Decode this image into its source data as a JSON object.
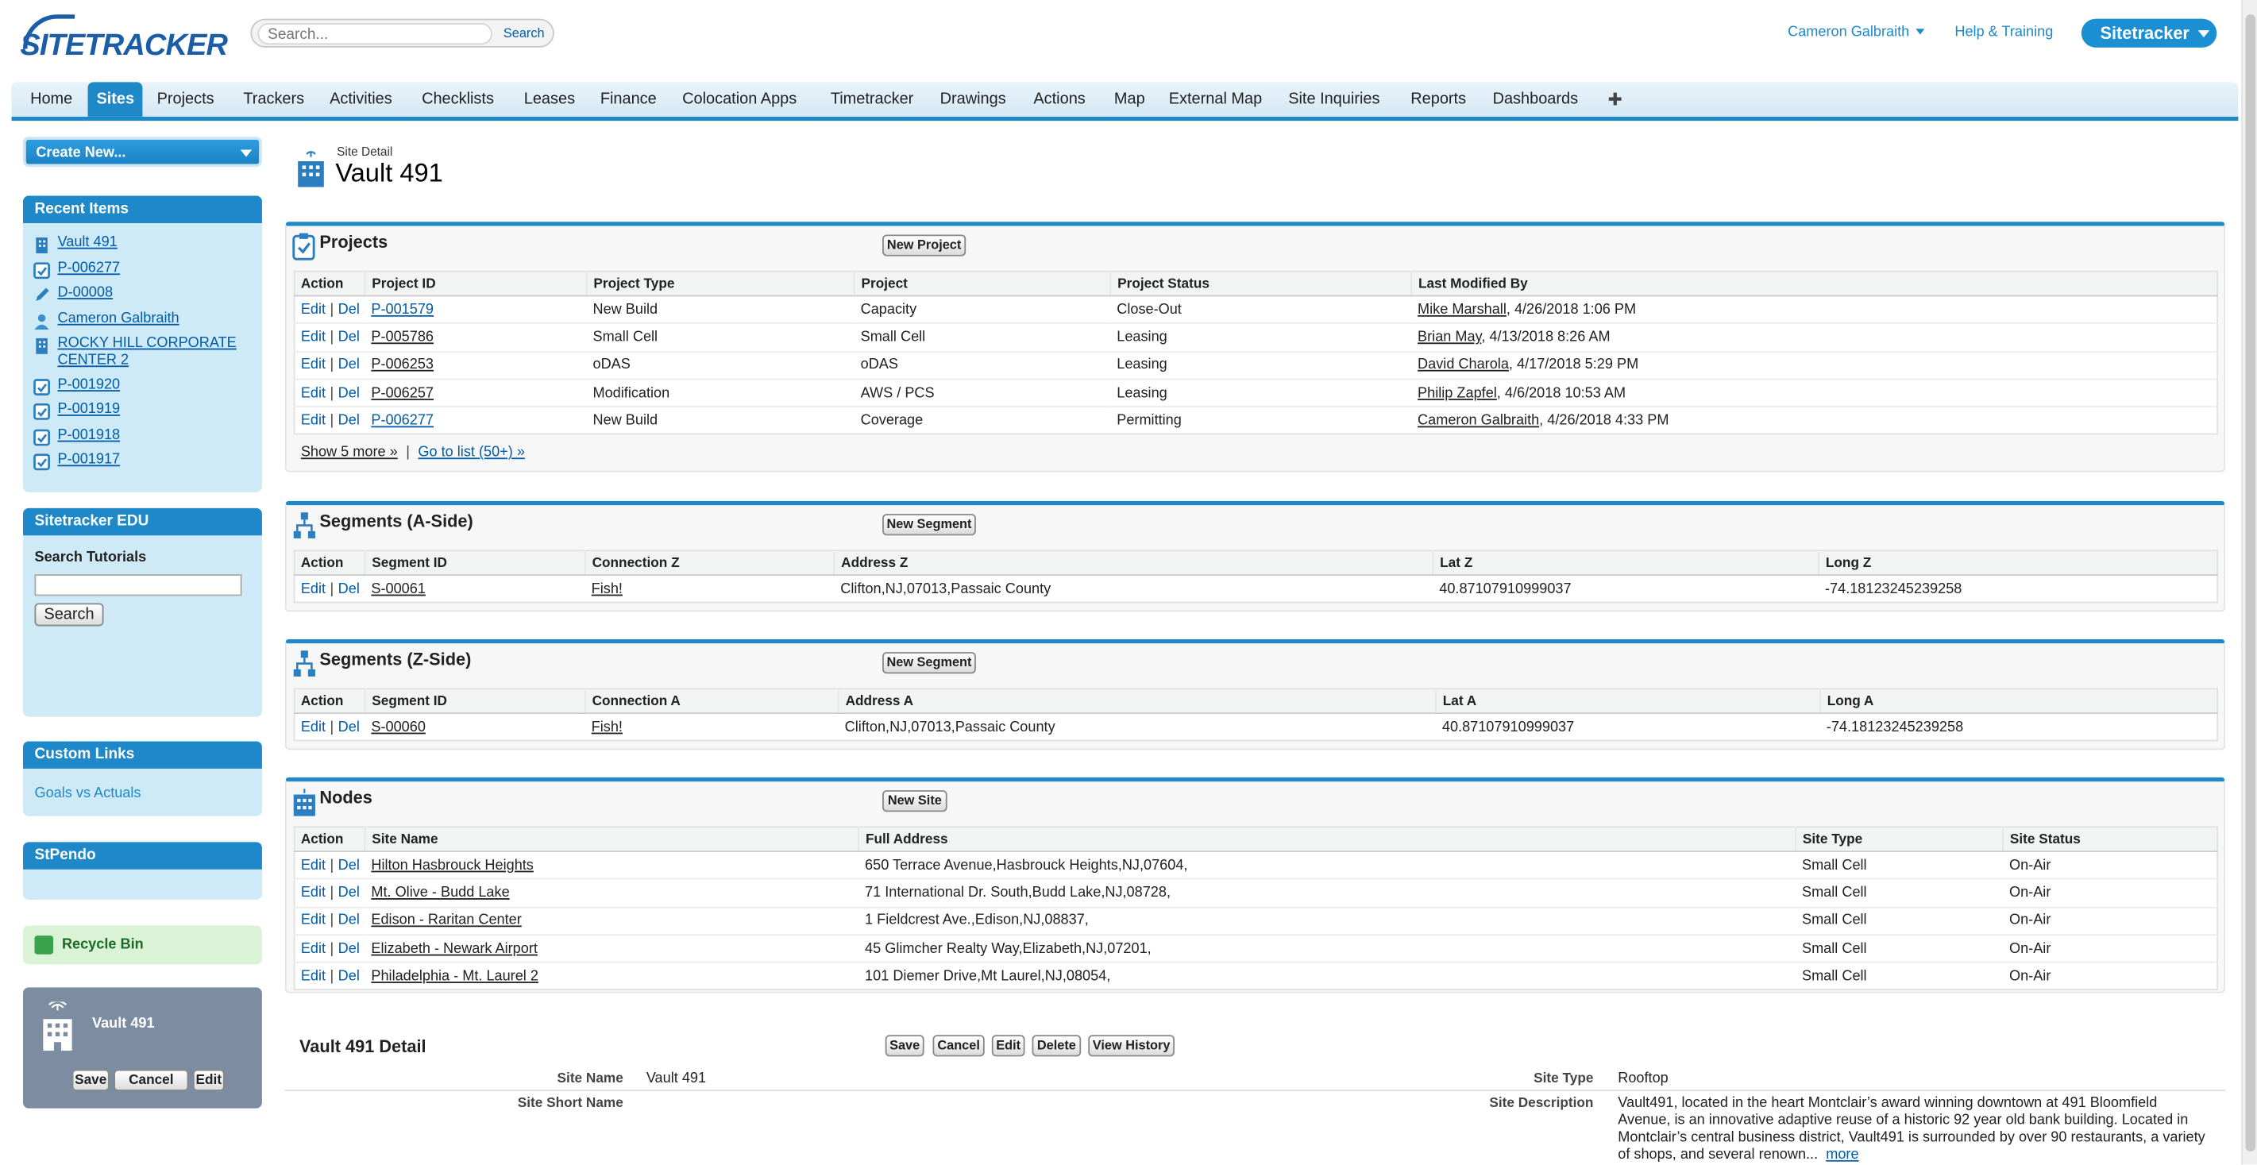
{
  "header": {
    "logo_text": "SITETRACKER",
    "search_placeholder": "Search...",
    "search_button": "Search",
    "user_name": "Cameron Galbraith",
    "help": "Help & Training",
    "app_menu": "Sitetracker"
  },
  "tabs": [
    "Home",
    "Sites",
    "Projects",
    "Trackers",
    "Activities",
    "Checklists",
    "Leases",
    "Finance",
    "Colocation Apps",
    "Timetracker",
    "Drawings",
    "Actions",
    "Map",
    "External Map",
    "Site Inquiries",
    "Reports",
    "Dashboards"
  ],
  "active_tab": "Sites",
  "sidebar": {
    "create_new": "Create New...",
    "recent_items_title": "Recent Items",
    "recent_items": [
      {
        "label": "Vault 491",
        "icon": "building-icon"
      },
      {
        "label": "P-006277",
        "icon": "project-icon"
      },
      {
        "label": "D-00008",
        "icon": "pencil-icon"
      },
      {
        "label": "Cameron Galbraith",
        "icon": "person-icon"
      },
      {
        "label": "ROCKY HILL CORPORATE CENTER 2",
        "icon": "building-icon"
      },
      {
        "label": "P-001920",
        "icon": "project-icon"
      },
      {
        "label": "P-001919",
        "icon": "project-icon"
      },
      {
        "label": "P-001918",
        "icon": "project-icon"
      },
      {
        "label": "P-001917",
        "icon": "project-icon"
      }
    ],
    "edu_title": "Sitetracker EDU",
    "search_tutorials_label": "Search Tutorials",
    "search_tutorials_button": "Search",
    "custom_links_title": "Custom Links",
    "custom_links": [
      "Goals vs Actuals"
    ],
    "stpendo_title": "StPendo",
    "recycle_bin": "Recycle Bin",
    "widget": {
      "title": "Vault 491",
      "save": "Save",
      "cancel": "Cancel",
      "edit": "Edit"
    }
  },
  "page": {
    "type_label": "Site Detail",
    "title": "Vault 491"
  },
  "projects": {
    "title": "Projects",
    "new_button": "New Project",
    "columns": [
      "Action",
      "Project ID",
      "Project Type",
      "Project",
      "Project Status",
      "Last Modified By"
    ],
    "rows": [
      {
        "id": "P-001579",
        "type": "New Build",
        "project": "Capacity",
        "status": "Close-Out",
        "modified_by": "Mike Marshall",
        "modified_at": ", 4/26/2018 1:06 PM"
      },
      {
        "id": "P-005786",
        "type": "Small Cell",
        "project": "Small Cell",
        "status": "Leasing",
        "modified_by": "Brian May",
        "modified_at": ", 4/13/2018 8:26 AM"
      },
      {
        "id": "P-006253",
        "type": "oDAS",
        "project": "oDAS",
        "status": "Leasing",
        "modified_by": "David Charola",
        "modified_at": ", 4/17/2018 5:29 PM"
      },
      {
        "id": "P-006257",
        "type": "Modification",
        "project": "AWS / PCS",
        "status": "Leasing",
        "modified_by": "Philip Zapfel",
        "modified_at": ", 4/6/2018 10:53 AM"
      },
      {
        "id": "P-006277",
        "type": "New Build",
        "project": "Coverage",
        "status": "Permitting",
        "modified_by": "Cameron Galbraith",
        "modified_at": ", 4/26/2018 4:33 PM"
      }
    ],
    "show_more": "Show 5 more »",
    "go_to_list": "Go to list (50+) »"
  },
  "row_actions": {
    "edit": "Edit",
    "sep": "|",
    "del": "Del"
  },
  "segments_a": {
    "title": "Segments (A-Side)",
    "new_button": "New Segment",
    "columns": [
      "Action",
      "Segment ID",
      "Connection Z",
      "Address Z",
      "Lat Z",
      "Long Z"
    ],
    "rows": [
      {
        "id": "S-00061",
        "connection": "Fish!",
        "address": "Clifton,NJ,07013,Passaic County",
        "lat": "40.87107910999037",
        "long": "-74.18123245239258"
      }
    ]
  },
  "segments_z": {
    "title": "Segments (Z-Side)",
    "new_button": "New Segment",
    "columns": [
      "Action",
      "Segment ID",
      "Connection A",
      "Address A",
      "Lat A",
      "Long A"
    ],
    "rows": [
      {
        "id": "S-00060",
        "connection": "Fish!",
        "address": "Clifton,NJ,07013,Passaic County",
        "lat": "40.87107910999037",
        "long": "-74.18123245239258"
      }
    ]
  },
  "nodes": {
    "title": "Nodes",
    "new_button": "New Site",
    "columns": [
      "Action",
      "Site Name",
      "Full Address",
      "Site Type",
      "Site Status"
    ],
    "rows": [
      {
        "name": "Hilton Hasbrouck Heights",
        "address": "650 Terrace Avenue,Hasbrouck Heights,NJ,07604,",
        "type": "Small Cell",
        "status": "On-Air"
      },
      {
        "name": "Mt. Olive - Budd Lake",
        "address": "71 International Dr. South,Budd Lake,NJ,08728,",
        "type": "Small Cell",
        "status": "On-Air"
      },
      {
        "name": "Edison - Raritan Center",
        "address": "1 Fieldcrest Ave.,Edison,NJ,08837,",
        "type": "Small Cell",
        "status": "On-Air"
      },
      {
        "name": "Elizabeth - Newark Airport",
        "address": "45 Glimcher Realty Way,Elizabeth,NJ,07201,",
        "type": "Small Cell",
        "status": "On-Air"
      },
      {
        "name": "Philadelphia - Mt. Laurel 2",
        "address": "101 Diemer Drive,Mt Laurel,NJ,08054,",
        "type": "Small Cell",
        "status": "On-Air"
      }
    ]
  },
  "detail": {
    "title": "Vault 491 Detail",
    "buttons": [
      "Save",
      "Cancel",
      "Edit",
      "Delete",
      "View History"
    ],
    "site_name_label": "Site Name",
    "site_name": "Vault 491",
    "site_short_name_label": "Site Short Name",
    "site_short_name": "",
    "site_type_label": "Site Type",
    "site_type": "Rooftop",
    "site_description_label": "Site Description",
    "site_description_lines": [
      "Vault491, located in the heart Montclair’s award winning downtown at 491 Bloomfield",
      "Avenue, is an innovative adaptive reuse of a historic 92 year old bank building. Located in",
      "Montclair’s central business district, Vault491 is surrounded by over 90 restaurants, a variety",
      "of shops, and several renown..."
    ],
    "more": "more"
  },
  "colors": {
    "accent": "#1e88c9",
    "link": "#015ba7",
    "sidebar_bg": "#cfeaf7"
  }
}
